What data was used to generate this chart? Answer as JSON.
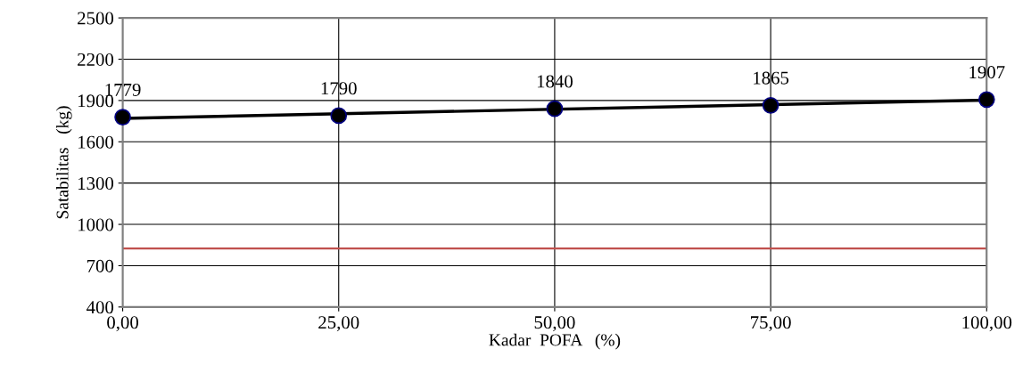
{
  "chart_data": {
    "type": "scatter",
    "xlabel": "Kadar  POFA   (%)",
    "ylabel": "Satabilitas   (kg)",
    "x": [
      0,
      25,
      50,
      75,
      100
    ],
    "series": [
      {
        "color": "#000000",
        "values": [
          1779,
          1790,
          1840,
          1865,
          1907
        ],
        "data_labels": true,
        "marker": "circle"
      },
      {
        "type": "line",
        "color": "#000000",
        "x": [
          0,
          100
        ],
        "values": [
          1770,
          1903
        ],
        "marker": "none",
        "line_style": "solid"
      }
    ],
    "xlim": [
      0,
      100
    ],
    "xticks": [
      {
        "value": 0,
        "label": "0,00"
      },
      {
        "value": 25,
        "label": "25,00"
      },
      {
        "value": 50,
        "label": "50,00"
      },
      {
        "value": 75,
        "label": "75,00"
      },
      {
        "value": 100,
        "label": "100,00"
      }
    ],
    "ylim": [
      400,
      2500
    ],
    "yticks": [
      400,
      700,
      1000,
      1300,
      1600,
      1900,
      2200,
      2500
    ],
    "grid": true,
    "legend": false,
    "ref_lines": [
      {
        "axis": "y",
        "value": 825,
        "color": "#c0504d"
      }
    ]
  }
}
